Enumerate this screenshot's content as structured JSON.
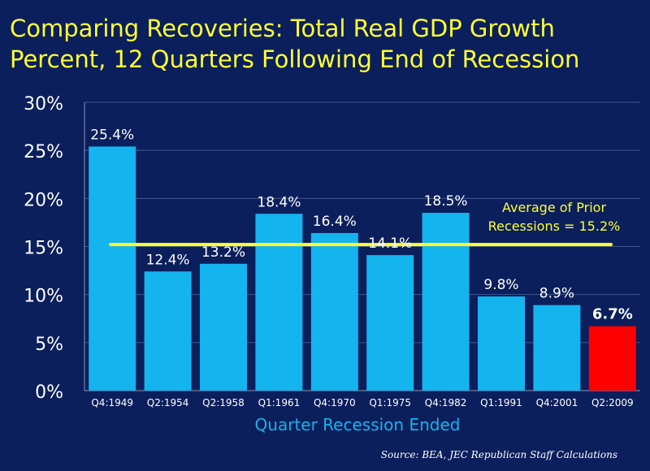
{
  "title_line1": "Comparing Recoveries:  Total Real GDP Growth",
  "title_line2": "Percent, 12 Quarters Following End of Recession",
  "source": "Source:  BEA, JEC Republican Staff Calculations",
  "colors": {
    "background": "#0b1f5c",
    "title": "#ffff33",
    "bar": "#14b4ee",
    "highlight_bar": "#ff0000",
    "average_line": "#ffff33",
    "average_label": "#ffff33",
    "axis_text": "#ffffff",
    "xlabel": "#14b4ee"
  },
  "chart_data": {
    "type": "bar",
    "title": "Comparing Recoveries:  Total Real GDP Growth Percent, 12 Quarters Following End of Recession",
    "xlabel": "Quarter Recession Ended",
    "ylabel": "",
    "ylim": [
      0,
      30
    ],
    "yticks": [
      0,
      5,
      10,
      15,
      20,
      25,
      30
    ],
    "ytick_labels": [
      "0%",
      "5%",
      "10%",
      "15%",
      "20%",
      "25%",
      "30%"
    ],
    "grid": true,
    "categories": [
      "Q4:1949",
      "Q2:1954",
      "Q2:1958",
      "Q1:1961",
      "Q4:1970",
      "Q1:1975",
      "Q4:1982",
      "Q1:1991",
      "Q4:2001",
      "Q2:2009"
    ],
    "values": [
      25.4,
      12.4,
      13.2,
      18.4,
      16.4,
      14.1,
      18.5,
      9.8,
      8.9,
      6.7
    ],
    "value_labels": [
      "25.4%",
      "12.4%",
      "13.2%",
      "18.4%",
      "16.4%",
      "14.1%",
      "18.5%",
      "9.8%",
      "8.9%",
      "6.7%"
    ],
    "highlight_index": 9,
    "average": {
      "value": 15.2,
      "label_line1": "Average of Prior",
      "label_line2": "Recessions = 15.2%"
    }
  }
}
